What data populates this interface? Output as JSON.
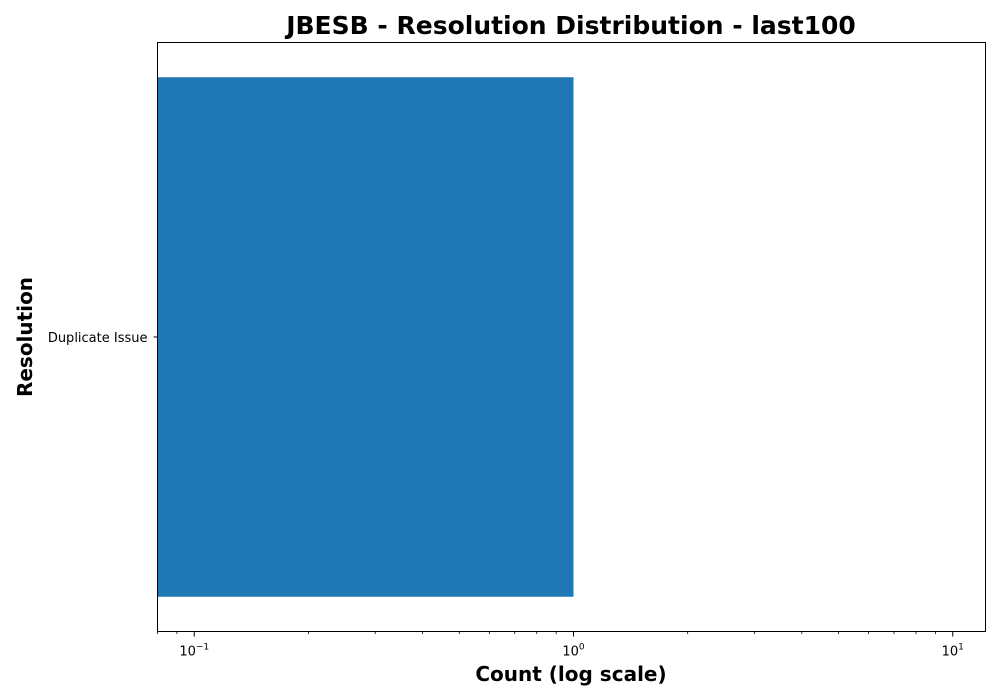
{
  "chart_data": {
    "type": "bar",
    "orientation": "horizontal",
    "title": "JBESB - Resolution Distribution - last100",
    "xlabel": "Count (log scale)",
    "ylabel": "Resolution",
    "x_scale": "log",
    "xlim": [
      0.08,
      12.2
    ],
    "x_ticks": [
      {
        "base": "10",
        "exp": "−1",
        "value": 0.1
      },
      {
        "base": "10",
        "exp": "0",
        "value": 1
      },
      {
        "base": "10",
        "exp": "1",
        "value": 10
      }
    ],
    "categories": [
      "Duplicate Issue"
    ],
    "values": [
      1
    ],
    "bar_color": "#1f77b4",
    "grid": false,
    "legend": "none"
  }
}
